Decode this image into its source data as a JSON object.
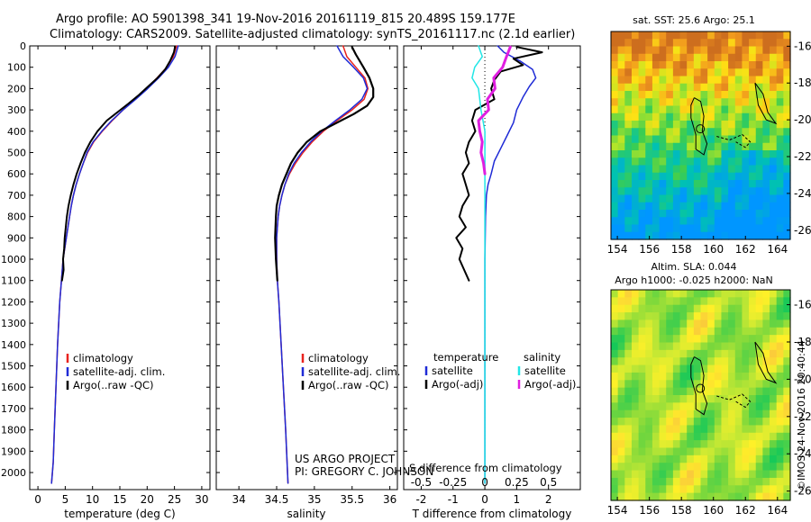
{
  "header": {
    "line1": "Argo profile: AO 5901398_341 19-Nov-2016 20161119_815 20.489S 159.177E",
    "line2": "Climatology: CARS2009. Satellite-adjusted climatology: synTS_20161117.nc (2.1d earlier)"
  },
  "colors": {
    "climatology": "#e8231e",
    "satellite": "#1f2bd6",
    "argo": "#000000",
    "satellite_s": "#22e6e6",
    "argo_adj_s": "#e01ee0"
  },
  "credits": {
    "project": "US ARGO PROJECT",
    "pi": "PI: GREGORY C. JOHNSON"
  },
  "stamp": "©IMOS 24-Nov-2016 20:40:44",
  "maps": [
    {
      "title": "sat. SST: 25.6 Argo: 25.1",
      "colormap": "sst",
      "xticks": [
        "154",
        "156",
        "158",
        "160",
        "162",
        "164"
      ],
      "yticks": [
        "-16",
        "-18",
        "-20",
        "-22",
        "-24",
        "-26"
      ],
      "xlim": [
        153.6,
        164.8
      ],
      "ylim": [
        -26.5,
        -15.2
      ],
      "marker": [
        159.18,
        -20.49
      ]
    },
    {
      "title_line1": "Altim. SLA: 0.044",
      "title_line2": "Argo h1000: -0.025 h2000: NaN",
      "colormap": "sla",
      "xticks": [
        "154",
        "156",
        "158",
        "160",
        "162",
        "164"
      ],
      "yticks": [
        "-16",
        "-18",
        "-20",
        "-22",
        "-24",
        "-26"
      ],
      "xlim": [
        153.6,
        164.8
      ],
      "ylim": [
        -26.5,
        -15.2
      ],
      "marker": [
        159.18,
        -20.49
      ]
    }
  ],
  "chart_data": [
    {
      "type": "line",
      "panel": "temperature",
      "xlabel": "temperature (deg C)",
      "ylabel": "",
      "xlim": [
        -1.5,
        31.5
      ],
      "ylim": [
        2080,
        0
      ],
      "xticks": [
        "0",
        "5",
        "10",
        "15",
        "20",
        "25",
        "30"
      ],
      "yticks": [
        "0",
        "100",
        "200",
        "300",
        "400",
        "500",
        "600",
        "700",
        "800",
        "900",
        "1000",
        "1100",
        "1200",
        "1300",
        "1400",
        "1500",
        "1600",
        "1700",
        "1800",
        "1900",
        "2000"
      ],
      "legend": [
        "climatology",
        "satellite-adj. clim.",
        "Argo(..raw -QC)"
      ],
      "series": [
        {
          "name": "climatology",
          "color_key": "climatology",
          "x": [
            25.4,
            24.8,
            23.6,
            21.8,
            19.9,
            17.8,
            15.6,
            13.6,
            11.8,
            10.2,
            9.1,
            8.3,
            7.6,
            7.0,
            6.5,
            6.1,
            5.8,
            5.5,
            5.2,
            4.9,
            4.6,
            4.3,
            4.0,
            3.6,
            3.3,
            3.0,
            2.8,
            2.5
          ],
          "y": [
            0,
            50,
            100,
            150,
            200,
            250,
            300,
            350,
            400,
            450,
            500,
            550,
            600,
            650,
            700,
            750,
            800,
            850,
            900,
            950,
            1000,
            1100,
            1200,
            1400,
            1600,
            1800,
            1950,
            2050
          ]
        },
        {
          "name": "satellite-adj. clim.",
          "color_key": "satellite",
          "x": [
            25.7,
            25.1,
            23.9,
            22.1,
            20.1,
            17.9,
            15.6,
            13.5,
            11.7,
            10.1,
            9.0,
            8.3,
            7.6,
            7.0,
            6.5,
            6.1,
            5.8,
            5.5,
            5.2,
            4.9,
            4.6,
            4.3,
            4.0,
            3.6,
            3.3,
            3.0,
            2.8,
            2.5
          ],
          "y": [
            0,
            50,
            100,
            150,
            200,
            250,
            300,
            350,
            400,
            450,
            500,
            550,
            600,
            650,
            700,
            750,
            800,
            850,
            900,
            950,
            1000,
            1100,
            1200,
            1400,
            1600,
            1800,
            1950,
            2050
          ]
        },
        {
          "name": "Argo(..raw -QC)",
          "color_key": "argo",
          "x": [
            25.1,
            24.9,
            24.2,
            23.3,
            21.9,
            20.2,
            18.5,
            16.6,
            14.6,
            12.6,
            10.9,
            9.6,
            8.6,
            7.8,
            7.1,
            6.5,
            6.0,
            5.6,
            5.3,
            5.1,
            4.9,
            4.8,
            4.6,
            4.7,
            4.4
          ],
          "y": [
            5,
            30,
            70,
            110,
            150,
            190,
            230,
            270,
            310,
            350,
            400,
            450,
            500,
            550,
            600,
            650,
            700,
            750,
            800,
            850,
            900,
            950,
            1000,
            1050,
            1100
          ]
        }
      ]
    },
    {
      "type": "line",
      "panel": "salinity",
      "xlabel": "salinity",
      "ylabel": "",
      "xlim": [
        33.7,
        36.1
      ],
      "ylim": [
        2080,
        0
      ],
      "xticks": [
        "34",
        "34.5",
        "35",
        "35.5",
        "36"
      ],
      "legend": [
        "climatology",
        "satellite-adj. clim.",
        "Argo(..raw -QC)"
      ],
      "series": [
        {
          "name": "climatology",
          "color_key": "climatology",
          "x": [
            35.38,
            35.43,
            35.55,
            35.67,
            35.71,
            35.66,
            35.5,
            35.3,
            35.12,
            34.97,
            34.85,
            34.75,
            34.67,
            34.61,
            34.57,
            34.54,
            34.52,
            34.51,
            34.5,
            34.5,
            34.51,
            34.53,
            34.56,
            34.59,
            34.62,
            34.65
          ],
          "y": [
            0,
            50,
            100,
            150,
            200,
            250,
            300,
            350,
            400,
            450,
            500,
            550,
            600,
            650,
            700,
            750,
            800,
            850,
            900,
            1000,
            1100,
            1200,
            1400,
            1600,
            1800,
            2050
          ]
        },
        {
          "name": "satellite-adj. clim.",
          "color_key": "satellite",
          "x": [
            35.3,
            35.38,
            35.52,
            35.65,
            35.7,
            35.63,
            35.47,
            35.28,
            35.1,
            34.95,
            34.83,
            34.73,
            34.66,
            34.61,
            34.57,
            34.54,
            34.52,
            34.51,
            34.5,
            34.5,
            34.51,
            34.53,
            34.56,
            34.59,
            34.62,
            34.65
          ],
          "y": [
            0,
            50,
            100,
            150,
            200,
            250,
            300,
            350,
            400,
            450,
            500,
            550,
            600,
            650,
            700,
            750,
            800,
            850,
            900,
            1000,
            1100,
            1200,
            1400,
            1600,
            1800,
            2050
          ]
        },
        {
          "name": "Argo(..raw -QC)",
          "color_key": "argo",
          "x": [
            35.5,
            35.55,
            35.65,
            35.73,
            35.78,
            35.78,
            35.7,
            35.52,
            35.3,
            35.08,
            34.9,
            34.78,
            34.69,
            34.63,
            34.57,
            34.53,
            34.5,
            34.49,
            34.48,
            34.49,
            34.51
          ],
          "y": [
            5,
            40,
            100,
            150,
            200,
            240,
            280,
            320,
            360,
            400,
            450,
            500,
            550,
            600,
            650,
            700,
            750,
            800,
            900,
            1000,
            1100
          ]
        }
      ]
    },
    {
      "type": "line",
      "panel": "differences",
      "xlabel": "T difference from climatology",
      "x2label": "S difference from climatology",
      "xlim": [
        -2.55,
        3.0
      ],
      "x2lim": [
        -0.6375,
        0.75
      ],
      "ylim": [
        2080,
        0
      ],
      "xticks": [
        "-2",
        "-1",
        "0",
        "1",
        "2"
      ],
      "x2ticks": [
        "-0.5",
        "-0.25",
        "0",
        "0.25",
        "0.5"
      ],
      "legend": {
        "temperature": [
          "temperature",
          "satellite",
          "Argo(-adj)"
        ],
        "salinity": [
          "salinity",
          "satellite",
          "Argo(-adj)"
        ]
      },
      "series": [
        {
          "name": "satellite",
          "color_key": "satellite",
          "axis": "T",
          "x": [
            0.4,
            0.6,
            1.1,
            1.5,
            1.6,
            1.4,
            1.2,
            1.0,
            0.9,
            0.7,
            0.5,
            0.3,
            0.2,
            0.1,
            0.05,
            0.02,
            0.0,
            0.0,
            0.0,
            0.0
          ],
          "y": [
            0,
            30,
            70,
            110,
            150,
            190,
            240,
            300,
            360,
            420,
            480,
            540,
            600,
            650,
            700,
            800,
            1000,
            1200,
            1600,
            2050
          ]
        },
        {
          "name": "Argo(-adj)",
          "color_key": "argo",
          "axis": "T",
          "x": [
            1.0,
            1.8,
            0.9,
            1.2,
            0.5,
            0.3,
            0.2,
            0.3,
            -0.3,
            -0.4,
            -0.3,
            -0.5,
            -0.6,
            -0.5,
            -0.7,
            -0.6,
            -0.5,
            -0.7,
            -0.8,
            -0.6,
            -0.9,
            -0.7,
            -0.8,
            -0.5
          ],
          "y": [
            5,
            30,
            60,
            90,
            120,
            160,
            200,
            250,
            300,
            350,
            400,
            450,
            500,
            550,
            600,
            650,
            700,
            750,
            800,
            850,
            900,
            950,
            1000,
            1100
          ]
        },
        {
          "name": "satellite",
          "color_key": "satellite_s",
          "axis": "S",
          "x": [
            -0.05,
            -0.02,
            -0.08,
            -0.1,
            -0.05,
            -0.03,
            0.0,
            0.0,
            0.0,
            0.0,
            0.0,
            0.0
          ],
          "y": [
            0,
            50,
            100,
            150,
            200,
            300,
            400,
            500,
            700,
            1000,
            1500,
            2050
          ]
        },
        {
          "name": "Argo(-adj)",
          "color_key": "argo_adj_s",
          "axis": "S",
          "x": [
            0.2,
            0.17,
            0.14,
            0.07,
            0.08,
            0.02,
            0.03,
            -0.05,
            -0.04,
            -0.02,
            -0.03,
            -0.01,
            0.0
          ],
          "y": [
            5,
            50,
            100,
            150,
            200,
            250,
            300,
            350,
            400,
            450,
            500,
            550,
            600
          ]
        }
      ]
    }
  ]
}
